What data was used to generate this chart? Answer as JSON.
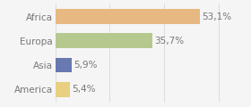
{
  "categories": [
    "Africa",
    "Europa",
    "Asia",
    "America"
  ],
  "values": [
    53.1,
    35.7,
    5.9,
    5.4
  ],
  "labels": [
    "53,1%",
    "35,7%",
    "5,9%",
    "5,4%"
  ],
  "bar_colors": [
    "#e8b882",
    "#b5c98e",
    "#6878b0",
    "#e8d080"
  ],
  "background_color": "#f5f5f5",
  "xlim": [
    0,
    70
  ],
  "bar_height": 0.62,
  "label_fontsize": 7.5,
  "category_fontsize": 7.5,
  "text_color": "#777777",
  "grid_color": "#dddddd",
  "grid_ticks": [
    0,
    20,
    40,
    60
  ]
}
